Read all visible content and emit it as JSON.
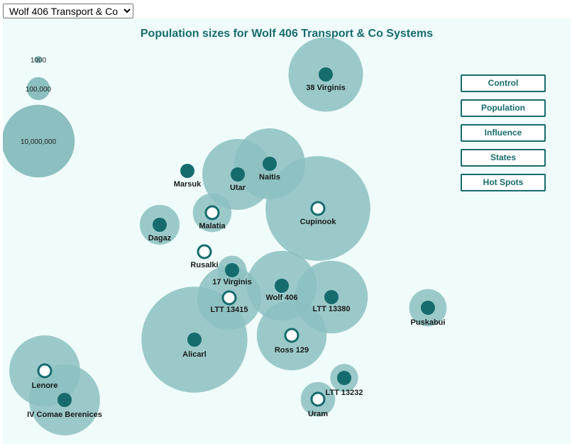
{
  "faction_select": {
    "value": "Wolf 406 Transport & Co",
    "options": [
      "Wolf 406 Transport & Co"
    ]
  },
  "buttons": {
    "control": "Control",
    "population": "Population",
    "influence": "Influence",
    "states": "States",
    "hot_spots": "Hot Spots"
  },
  "colors": {
    "bubble": "#8cbfbf",
    "marker": "#166b6d",
    "title": "#166b6d",
    "background": "#f0fcfc"
  },
  "chart_data": {
    "type": "bubble",
    "title": "Population sizes for Wolf 406 Transport & Co Systems",
    "size_legend": [
      "1000",
      "100,000",
      "10,000,000"
    ],
    "systems": [
      {
        "name": "38 Virginis",
        "controlled": true,
        "population": 11000000
      },
      {
        "name": "Marsuk",
        "controlled": true,
        "population": null
      },
      {
        "name": "Utar",
        "controlled": true,
        "population": 9000000
      },
      {
        "name": "Naitis",
        "controlled": true,
        "population": 9000000
      },
      {
        "name": "Cupinook",
        "controlled": false,
        "population": 43000000
      },
      {
        "name": "Malatia",
        "controlled": false,
        "population": 800000
      },
      {
        "name": "Dagaz",
        "controlled": true,
        "population": 900000
      },
      {
        "name": "Rusalki",
        "controlled": false,
        "population": null
      },
      {
        "name": "17 Virginis",
        "controlled": true,
        "population": 250000
      },
      {
        "name": "LTT 13415",
        "controlled": false,
        "population": 6000000
      },
      {
        "name": "Wolf 406",
        "controlled": true,
        "population": 8500000
      },
      {
        "name": "LTT 13380",
        "controlled": true,
        "population": 10000000
      },
      {
        "name": "Puskabui",
        "controlled": true,
        "population": 700000
      },
      {
        "name": "Ross 129",
        "controlled": false,
        "population": 8500000
      },
      {
        "name": "Alicarl",
        "controlled": true,
        "population": 45000000
      },
      {
        "name": "Lenore",
        "controlled": false,
        "population": 9000000
      },
      {
        "name": "IV Comae Berenices",
        "controlled": true,
        "population": 9000000
      },
      {
        "name": "LTT 13232",
        "controlled": true,
        "population": 220000
      },
      {
        "name": "Uram",
        "controlled": false,
        "population": 500000
      }
    ]
  }
}
